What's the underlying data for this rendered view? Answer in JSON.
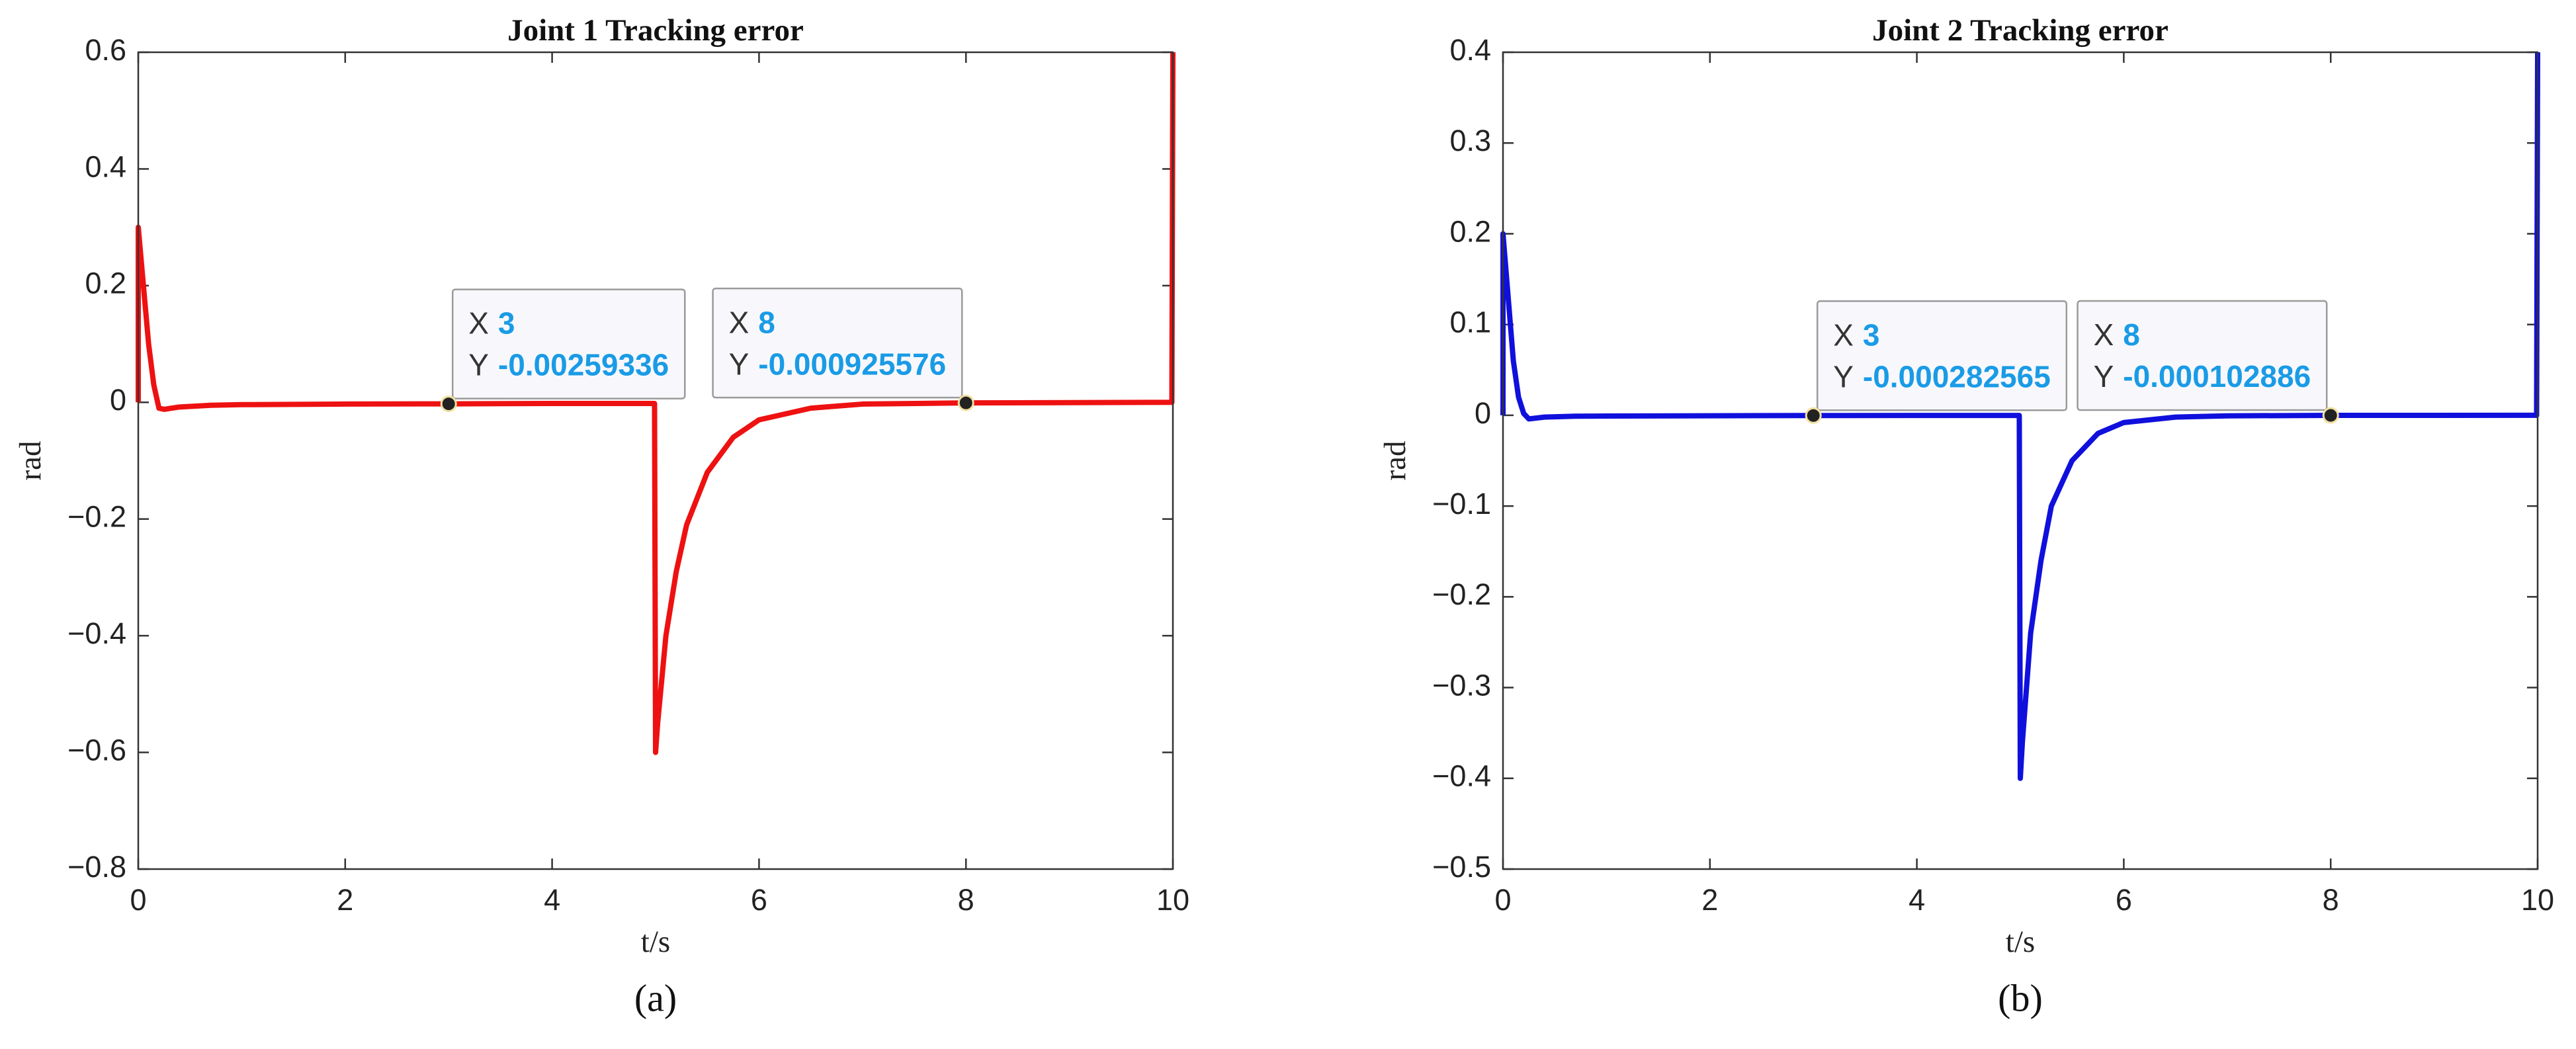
{
  "chart_data": [
    {
      "type": "line",
      "title": "Joint 1 Tracking error",
      "xlabel": "t/s",
      "ylabel": "rad",
      "caption": "(a)",
      "x": [
        0,
        0,
        0.05,
        0.1,
        0.15,
        0.2,
        0.25,
        0.4,
        0.7,
        1,
        2,
        3,
        4,
        4.99,
        5,
        5.02,
        5.1,
        5.2,
        5.3,
        5.5,
        5.75,
        6,
        6.5,
        7,
        8,
        9,
        9.99,
        10
      ],
      "values": [
        0,
        0.3,
        0.2,
        0.1,
        0.03,
        -0.01,
        -0.012,
        -0.008,
        -0.005,
        -0.004,
        -0.003,
        -0.00259336,
        -0.002,
        -0.002,
        -0.6,
        -0.55,
        -0.4,
        -0.29,
        -0.21,
        -0.12,
        -0.06,
        -0.03,
        -0.01,
        -0.003,
        -0.000925576,
        -0.0005,
        0,
        0.6
      ],
      "color": "#ee1111",
      "xlim": [
        0,
        10
      ],
      "xticks": [
        0,
        2,
        4,
        6,
        8,
        10
      ],
      "ylim": [
        -0.8,
        0.6
      ],
      "yticks": [
        {
          "value": -0.8,
          "label": "−0.8"
        },
        {
          "value": -0.6,
          "label": "−0.6"
        },
        {
          "value": -0.4,
          "label": "−0.4"
        },
        {
          "value": -0.2,
          "label": "−0.2"
        },
        0,
        0.2,
        0.4,
        0.6
      ],
      "datatip_labels": [
        "X",
        "Y"
      ],
      "datatips": [
        {
          "x": 3,
          "y": -0.00259336
        },
        {
          "x": 8,
          "y": -0.000925576
        }
      ]
    },
    {
      "type": "line",
      "title": "Joint 2 Tracking error",
      "xlabel": "t/s",
      "ylabel": "rad",
      "caption": "(b)",
      "x": [
        0,
        0,
        0.05,
        0.1,
        0.15,
        0.2,
        0.25,
        0.4,
        0.7,
        1,
        2,
        3,
        4,
        4.99,
        5,
        5.02,
        5.1,
        5.2,
        5.3,
        5.5,
        5.75,
        6,
        6.5,
        7,
        8,
        9,
        9.99,
        10
      ],
      "values": [
        0,
        0.2,
        0.13,
        0.06,
        0.02,
        0.002,
        -0.004,
        -0.002,
        -0.001,
        -0.0008,
        -0.0005,
        -0.000282565,
        -0.0002,
        -0.0002,
        -0.4,
        -0.36,
        -0.24,
        -0.16,
        -0.1,
        -0.05,
        -0.02,
        -0.008,
        -0.002,
        -0.0006,
        -0.000102886,
        -5e-05,
        0,
        0.4
      ],
      "color": "#1010dd",
      "xlim": [
        0,
        10
      ],
      "xticks": [
        0,
        2,
        4,
        6,
        8,
        10
      ],
      "ylim": [
        -0.5,
        0.4
      ],
      "yticks": [
        {
          "value": -0.5,
          "label": "−0.5"
        },
        {
          "value": -0.4,
          "label": "−0.4"
        },
        {
          "value": -0.3,
          "label": "−0.3"
        },
        {
          "value": -0.2,
          "label": "−0.2"
        },
        {
          "value": -0.1,
          "label": "−0.1"
        },
        0,
        0.1,
        0.2,
        0.3,
        0.4
      ],
      "datatip_labels": [
        "X",
        "Y"
      ],
      "datatips": [
        {
          "x": 3,
          "y": -0.000282565
        },
        {
          "x": 8,
          "y": -0.000102886
        }
      ]
    }
  ]
}
